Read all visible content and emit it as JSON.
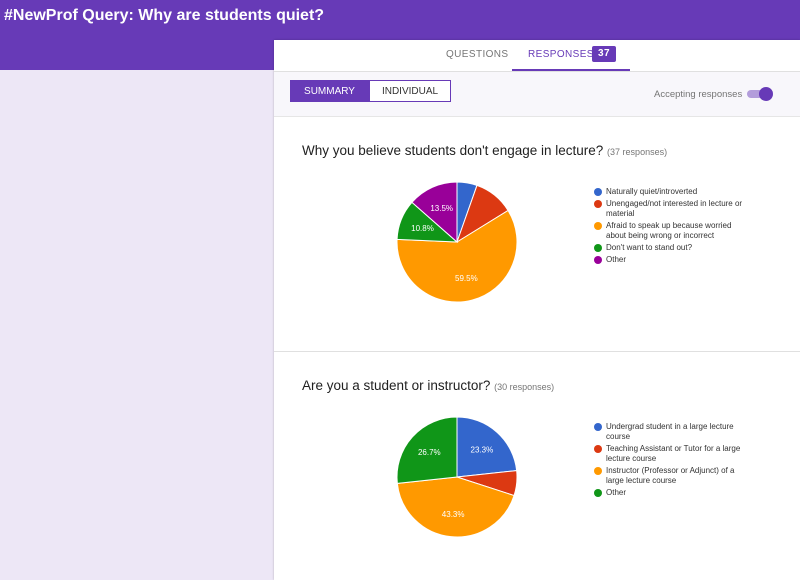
{
  "form": {
    "title": "#NewProf Query: Why are students quiet?"
  },
  "tabs": {
    "questions": "QUESTIONS",
    "responses": "RESPONSES",
    "responses_count": "37"
  },
  "toolbar": {
    "summary": "SUMMARY",
    "individual": "INDIVIDUAL",
    "accepting_label": "Accepting responses",
    "accepting_on": true
  },
  "accent_color": "#673ab7",
  "questions": [
    {
      "title": "Why you believe students don't engage in lecture?",
      "count_text": "(37 responses)",
      "chart_data": {
        "type": "pie",
        "labels": [
          "Naturally quiet/introverted",
          "Unengaged/not interested in lecture or material",
          "Afraid to speak up because worried about being wrong or incorrect",
          "Don't want to stand out?",
          "Other"
        ],
        "values": [
          5.4,
          10.8,
          59.5,
          10.8,
          13.5
        ],
        "colors": [
          "#3366cc",
          "#dc3912",
          "#ff9900",
          "#109618",
          "#990099"
        ],
        "data_labels": [
          "",
          "",
          "59.5%",
          "10.8%",
          "13.5%"
        ],
        "legend_position": "right"
      }
    },
    {
      "title": "Are you a student or instructor?",
      "count_text": "(30 responses)",
      "chart_data": {
        "type": "pie",
        "labels": [
          "Undergrad student in a large lecture course",
          "Teaching Assistant or Tutor for a large lecture course",
          "Instructor (Professor or Adjunct) of a large lecture course",
          "Other"
        ],
        "values": [
          23.3,
          6.7,
          43.3,
          26.7
        ],
        "colors": [
          "#3366cc",
          "#dc3912",
          "#ff9900",
          "#109618"
        ],
        "data_labels": [
          "23.3%",
          "",
          "43.3%",
          "26.7%"
        ],
        "legend_position": "right"
      }
    }
  ]
}
